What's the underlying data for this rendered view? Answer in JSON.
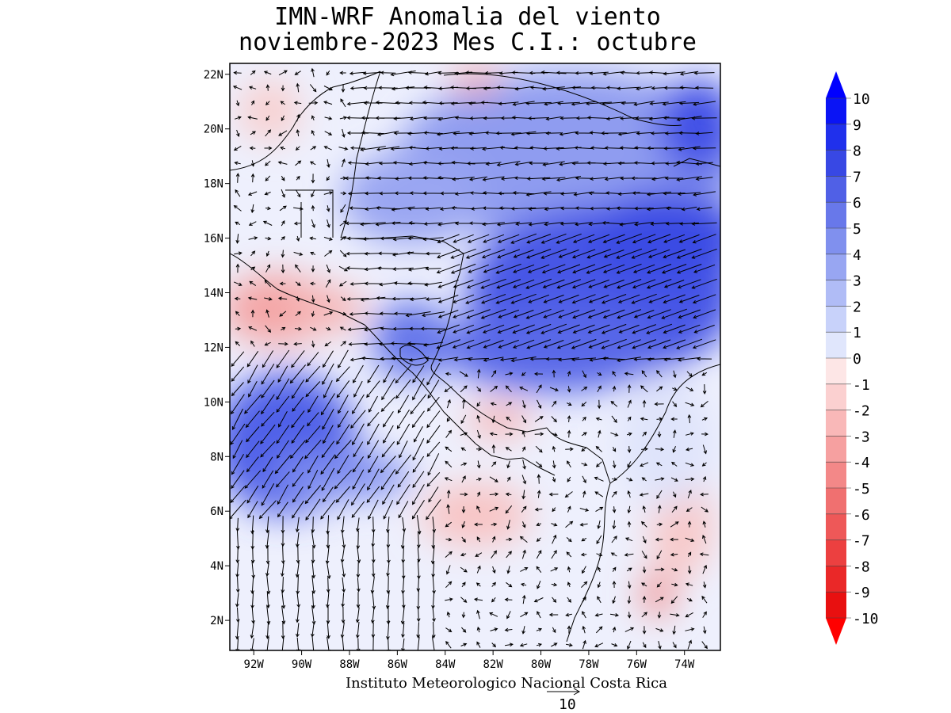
{
  "title": {
    "line1": "IMN-WRF Anomalia del viento",
    "line2": "noviembre-2023 Mes C.I.: octubre"
  },
  "credit": "Instituto Meteorologico Nacional Costa Rica",
  "reference_vector": {
    "label": "10",
    "magnitude": 10
  },
  "axes": {
    "x_ticks": [
      "92W",
      "90W",
      "88W",
      "86W",
      "84W",
      "82W",
      "80W",
      "78W",
      "76W",
      "74W"
    ],
    "x_values": [
      -92,
      -90,
      -88,
      -86,
      -84,
      -82,
      -80,
      -78,
      -76,
      -74
    ],
    "y_ticks": [
      "22N",
      "20N",
      "18N",
      "16N",
      "14N",
      "12N",
      "10N",
      "8N",
      "6N",
      "4N",
      "2N"
    ],
    "y_values": [
      22,
      20,
      18,
      16,
      14,
      12,
      10,
      8,
      6,
      4,
      2
    ],
    "lon_range": [
      -93.0,
      -72.5
    ],
    "lat_range": [
      0.9,
      22.4
    ]
  },
  "colorbar": {
    "labels": [
      "10",
      "9",
      "8",
      "7",
      "6",
      "5",
      "4",
      "3",
      "2",
      "1",
      "0",
      "-1",
      "-2",
      "-3",
      "-4",
      "-5",
      "-6",
      "-7",
      "-8",
      "-9",
      "-10"
    ],
    "colors": [
      "#0a14f5",
      "#2030ec",
      "#3848e4",
      "#5060e6",
      "#6878ea",
      "#8090ee",
      "#98a6f2",
      "#b0bcf6",
      "#c8d2fa",
      "#e0e6fc",
      "#fde6e6",
      "#fbd0d0",
      "#f9b8b8",
      "#f6a0a0",
      "#f38888",
      "#f07070",
      "#ee5858",
      "#ec4040",
      "#ea2828",
      "#e81010"
    ],
    "top_arrow_color": "#0000ff",
    "bottom_arrow_color": "#ff0000"
  },
  "colors": {
    "positive_max": "#0a14f5",
    "negative_max": "#e81010",
    "neutral": "#ffffff",
    "coastline": "#000000"
  }
}
